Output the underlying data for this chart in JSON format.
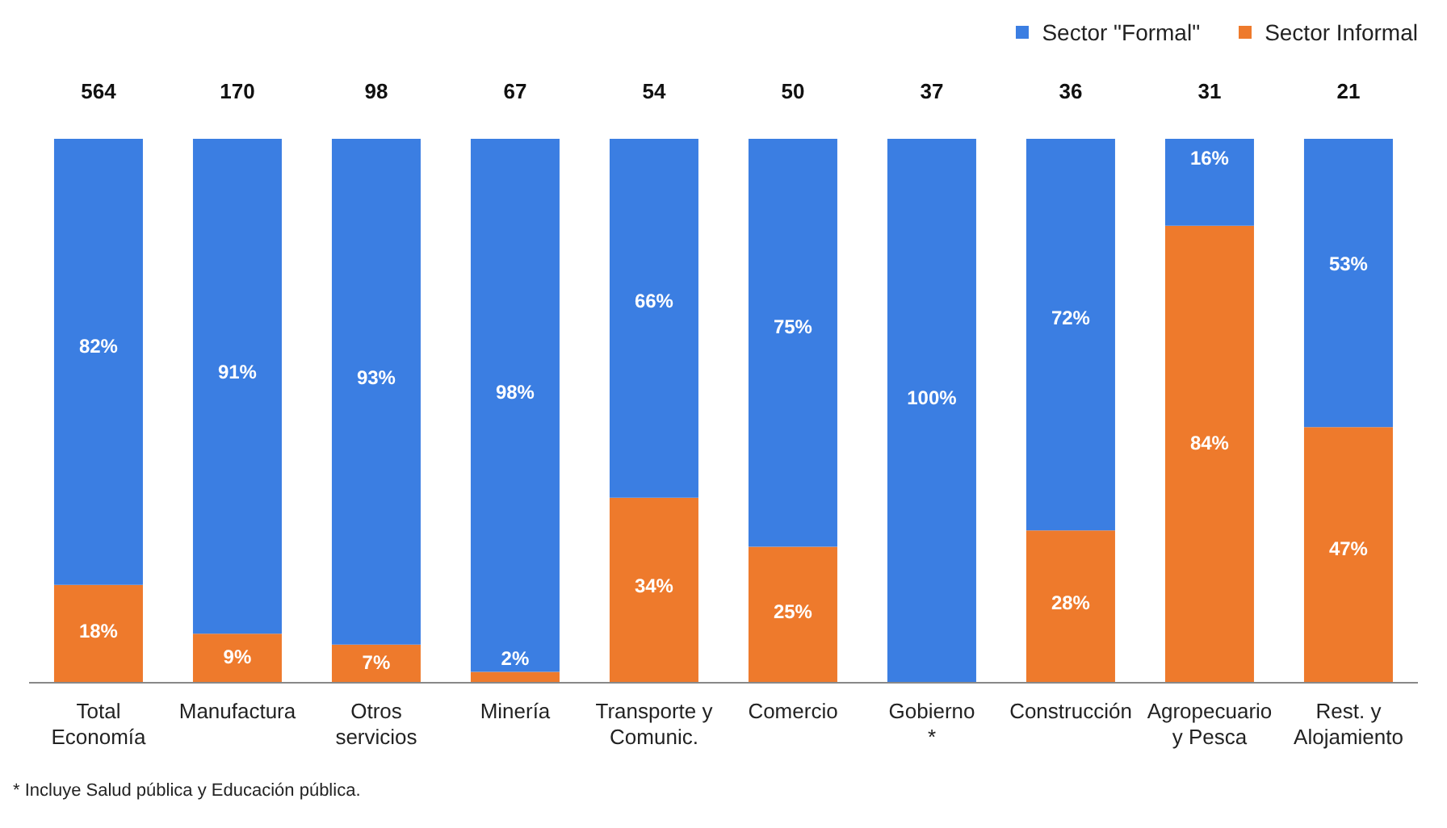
{
  "chart_data": {
    "type": "bar",
    "stacked": true,
    "categories": [
      "Total\nEconomía",
      "Manufactura",
      "Otros\nservicios",
      "Minería",
      "Transporte y\nComunic.",
      "Comercio",
      "Gobierno\n*",
      "Construcción",
      "Agropecuario\ny Pesca",
      "Rest. y\nAlojamiento"
    ],
    "series": [
      {
        "name": "Sector Informal",
        "color": "#ee7a2c",
        "values": [
          18,
          9,
          7,
          2,
          34,
          25,
          0,
          28,
          84,
          47
        ],
        "value_labels": [
          "18%",
          "9%",
          "7%",
          "2%",
          "34%",
          "25%",
          null,
          "28%",
          "84%",
          "47%"
        ]
      },
      {
        "name": "Sector \"Formal\"",
        "color": "#3b7ee2",
        "values": [
          82,
          91,
          93,
          98,
          66,
          75,
          100,
          72,
          16,
          53
        ],
        "value_labels": [
          "82%",
          "91%",
          "93%",
          "98%",
          "66%",
          "75%",
          "100%",
          "72%",
          "16%",
          "53%"
        ]
      }
    ],
    "legend": "top right",
    "annotations": [
      {
        "text": "564",
        "x": "Total\nEconomía",
        "y": 100
      },
      {
        "text": "170",
        "x": "Manufactura",
        "y": 100
      },
      {
        "text": "98",
        "x": "Otros\nservicios",
        "y": 100
      },
      {
        "text": "67",
        "x": "Minería",
        "y": 100
      },
      {
        "text": "54",
        "x": "Transporte y\nComunic.",
        "y": 100
      },
      {
        "text": "50",
        "x": "Comercio",
        "y": 100
      },
      {
        "text": "37",
        "x": "Gobierno\n*",
        "y": 100
      },
      {
        "text": "36",
        "x": "Construcción",
        "y": 100
      },
      {
        "text": "31",
        "x": "Agropecuario\ny Pesca",
        "y": 100
      },
      {
        "text": "21",
        "x": "Rest. y\nAlojamiento",
        "y": 100
      },
      "* Incluye Salud pública y Educación pública."
    ]
  }
}
